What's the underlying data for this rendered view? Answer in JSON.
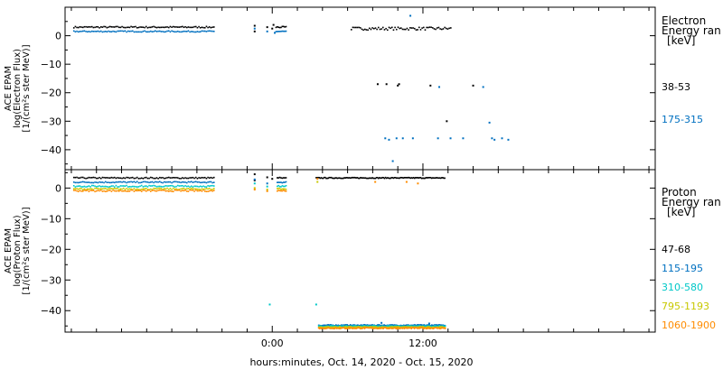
{
  "chart_data": [
    {
      "type": "scatter",
      "ylabel": [
        "ACE EPAM",
        "log(Electron Flux)",
        "[1/(cm²s ster MeV)]"
      ],
      "yticks": [
        0,
        -10,
        -20,
        -30,
        -40
      ],
      "ylim": [
        -47,
        10
      ],
      "xlim": [
        -16.5,
        30.5
      ],
      "legend_title": [
        "Electron",
        "Energy ran",
        "[keV]"
      ],
      "series": [
        {
          "name": "38-53",
          "color": "#000000",
          "marker": "dot",
          "segments": [
            {
              "x0": -15.8,
              "x1": -4.6,
              "y": 3.0,
              "jitter": 0.25,
              "step": 0.12
            },
            {
              "x0": 6.3,
              "x1": 14.3,
              "y": 2.5,
              "jitter": 0.5,
              "step": 0.12
            },
            {
              "x0": 0.3,
              "x1": 1.1,
              "y": 3.0,
              "jitter": 0.25,
              "step": 0.1
            }
          ],
          "points": [
            [
              -1.4,
              3.5
            ],
            [
              -1.4,
              1.5
            ],
            [
              -0.4,
              3.0
            ],
            [
              0.0,
              2.5
            ],
            [
              0.1,
              3.8
            ],
            [
              8.4,
              -17.0
            ],
            [
              9.1,
              -17.0
            ],
            [
              10.0,
              -17.5
            ],
            [
              10.1,
              -17.0
            ],
            [
              12.6,
              -17.5
            ],
            [
              16.0,
              -17.5
            ],
            [
              13.9,
              -30.0
            ]
          ]
        },
        {
          "name": "175-315",
          "color": "#0070c0",
          "marker": "dot",
          "segments": [
            {
              "x0": -15.8,
              "x1": -4.6,
              "y": 1.5,
              "jitter": 0.2,
              "step": 0.12
            },
            {
              "x0": 0.3,
              "x1": 1.1,
              "y": 1.5,
              "jitter": 0.2,
              "step": 0.1
            }
          ],
          "points": [
            [
              -1.4,
              2.5
            ],
            [
              -0.4,
              1.5
            ],
            [
              0.2,
              1.0
            ],
            [
              11.0,
              7.0
            ],
            [
              9.0,
              -36.0
            ],
            [
              9.3,
              -36.5
            ],
            [
              9.9,
              -36.0
            ],
            [
              10.4,
              -36.0
            ],
            [
              11.2,
              -36.0
            ],
            [
              13.2,
              -36.0
            ],
            [
              14.2,
              -36.0
            ],
            [
              15.2,
              -36.0
            ],
            [
              17.5,
              -36.0
            ],
            [
              18.3,
              -36.0
            ],
            [
              18.8,
              -36.5
            ],
            [
              9.6,
              -44.0
            ],
            [
              13.3,
              -18.0
            ],
            [
              16.8,
              -18.0
            ],
            [
              17.3,
              -30.5
            ],
            [
              17.7,
              -36.5
            ]
          ]
        }
      ]
    },
    {
      "type": "scatter",
      "ylabel": [
        "ACE EPAM",
        "log(Proton Flux)",
        "[1/(cm²s ster MeV)]"
      ],
      "yticks": [
        0,
        -10,
        -20,
        -30,
        -40
      ],
      "ylim": [
        -47,
        6
      ],
      "xlim": [
        -16.5,
        30.5
      ],
      "legend_title": [
        "Proton",
        "Energy ran",
        "[keV]"
      ],
      "series": [
        {
          "name": "47-68",
          "color": "#000000",
          "marker": "dot",
          "segments": [
            {
              "x0": -15.8,
              "x1": -4.6,
              "y": 3.3,
              "jitter": 0.2,
              "step": 0.12
            },
            {
              "x0": 3.5,
              "x1": 13.8,
              "y": 3.3,
              "jitter": 0.15,
              "step": 0.08
            },
            {
              "x0": 0.4,
              "x1": 1.1,
              "y": 3.3,
              "jitter": 0.2,
              "step": 0.1
            }
          ],
          "points": [
            [
              -1.4,
              4.5
            ],
            [
              -1.4,
              2.5
            ],
            [
              -0.4,
              3.5
            ],
            [
              0.0,
              3.0
            ]
          ]
        },
        {
          "name": "115-195",
          "color": "#0070c0",
          "marker": "dot",
          "segments": [
            {
              "x0": -15.8,
              "x1": -4.6,
              "y": 1.9,
              "jitter": 0.2,
              "step": 0.12
            },
            {
              "x0": 3.7,
              "x1": 13.8,
              "y": -44.8,
              "jitter": 0.2,
              "step": 0.06
            },
            {
              "x0": 0.4,
              "x1": 1.1,
              "y": 1.9,
              "jitter": 0.2,
              "step": 0.1
            }
          ],
          "points": [
            [
              -1.4,
              2.8
            ],
            [
              -0.4,
              1.5
            ],
            [
              8.7,
              -44.0
            ],
            [
              12.5,
              -44.2
            ]
          ]
        },
        {
          "name": "310-580",
          "color": "#00c8c8",
          "marker": "dot",
          "segments": [
            {
              "x0": -15.8,
              "x1": -4.6,
              "y": 0.6,
              "jitter": 0.25,
              "step": 0.12
            },
            {
              "x0": 3.7,
              "x1": 13.8,
              "y": -45.1,
              "jitter": 0.2,
              "step": 0.06
            },
            {
              "x0": 0.4,
              "x1": 1.1,
              "y": 0.6,
              "jitter": 0.2,
              "step": 0.1
            }
          ],
          "points": [
            [
              -1.4,
              1.5
            ],
            [
              -0.4,
              0.5
            ],
            [
              -0.2,
              -38.0
            ],
            [
              3.5,
              -38.0
            ]
          ]
        },
        {
          "name": "795-1193",
          "color": "#c8c800",
          "marker": "dot",
          "segments": [
            {
              "x0": -15.8,
              "x1": -4.6,
              "y": -0.3,
              "jitter": 0.25,
              "step": 0.12
            },
            {
              "x0": 3.7,
              "x1": 13.8,
              "y": -45.4,
              "jitter": 0.2,
              "step": 0.06
            },
            {
              "x0": 0.4,
              "x1": 1.1,
              "y": -0.3,
              "jitter": 0.2,
              "step": 0.1
            }
          ],
          "points": [
            [
              -1.4,
              0.0
            ],
            [
              -0.4,
              -0.5
            ],
            [
              3.6,
              2.0
            ]
          ]
        },
        {
          "name": "1060-1900",
          "color": "#ff8c00",
          "marker": "dot",
          "segments": [
            {
              "x0": -15.8,
              "x1": -4.6,
              "y": -0.9,
              "jitter": 0.25,
              "step": 0.12
            },
            {
              "x0": 3.7,
              "x1": 13.8,
              "y": -45.7,
              "jitter": 0.2,
              "step": 0.06
            },
            {
              "x0": 0.4,
              "x1": 1.1,
              "y": -0.9,
              "jitter": 0.2,
              "step": 0.1
            }
          ],
          "points": [
            [
              -1.4,
              -0.5
            ],
            [
              -0.4,
              -1.0
            ],
            [
              3.6,
              3.0
            ],
            [
              8.2,
              2.0
            ],
            [
              10.7,
              2.0
            ],
            [
              11.6,
              1.5
            ]
          ]
        }
      ]
    }
  ],
  "xaxis": {
    "label": "hours:minutes, Oct. 14, 2020 - Oct. 15, 2020",
    "ticks": [
      {
        "x": 0,
        "label": "0:00"
      },
      {
        "x": 12,
        "label": "12:00"
      }
    ],
    "minor_step": 2
  }
}
